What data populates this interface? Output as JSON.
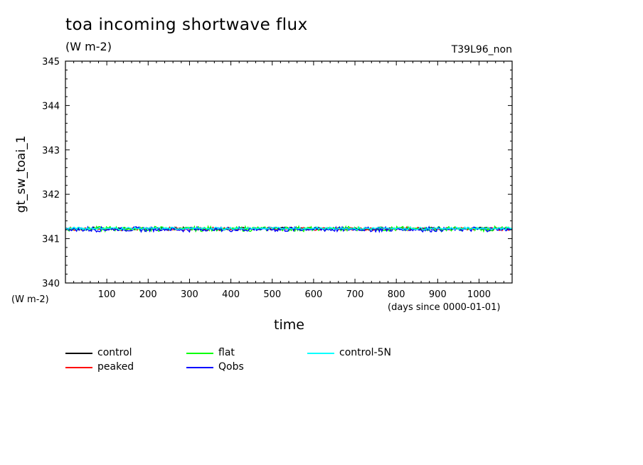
{
  "chart_data": {
    "type": "line",
    "title": "toa incoming shortwave flux",
    "units": "(W m-2)",
    "run_id": "T39L96_non",
    "ylabel": "gt_sw_toai_1",
    "ylabel_units": "(W m-2)",
    "xlabel": "time",
    "xlabel_units": "(days since 0000-01-01)",
    "xlim": [
      0,
      1080
    ],
    "ylim": [
      340,
      345
    ],
    "x_ticks": [
      100,
      200,
      300,
      400,
      500,
      600,
      700,
      800,
      900,
      1000
    ],
    "y_ticks": [
      340,
      341,
      342,
      343,
      344,
      345
    ],
    "grid": false,
    "legend_position": "bottom",
    "series": [
      {
        "name": "control",
        "color": "#000000",
        "mean": 341.23,
        "amplitude": 0.03
      },
      {
        "name": "peaked",
        "color": "#ff0000",
        "mean": 341.22,
        "amplitude": 0.04
      },
      {
        "name": "flat",
        "color": "#00ff00",
        "mean": 341.22,
        "amplitude": 0.06
      },
      {
        "name": "Qobs",
        "color": "#0000ff",
        "mean": 341.21,
        "amplitude": 0.06
      },
      {
        "name": "control-5N",
        "color": "#00ffff",
        "mean": 341.23,
        "amplitude": 0.03
      }
    ]
  }
}
